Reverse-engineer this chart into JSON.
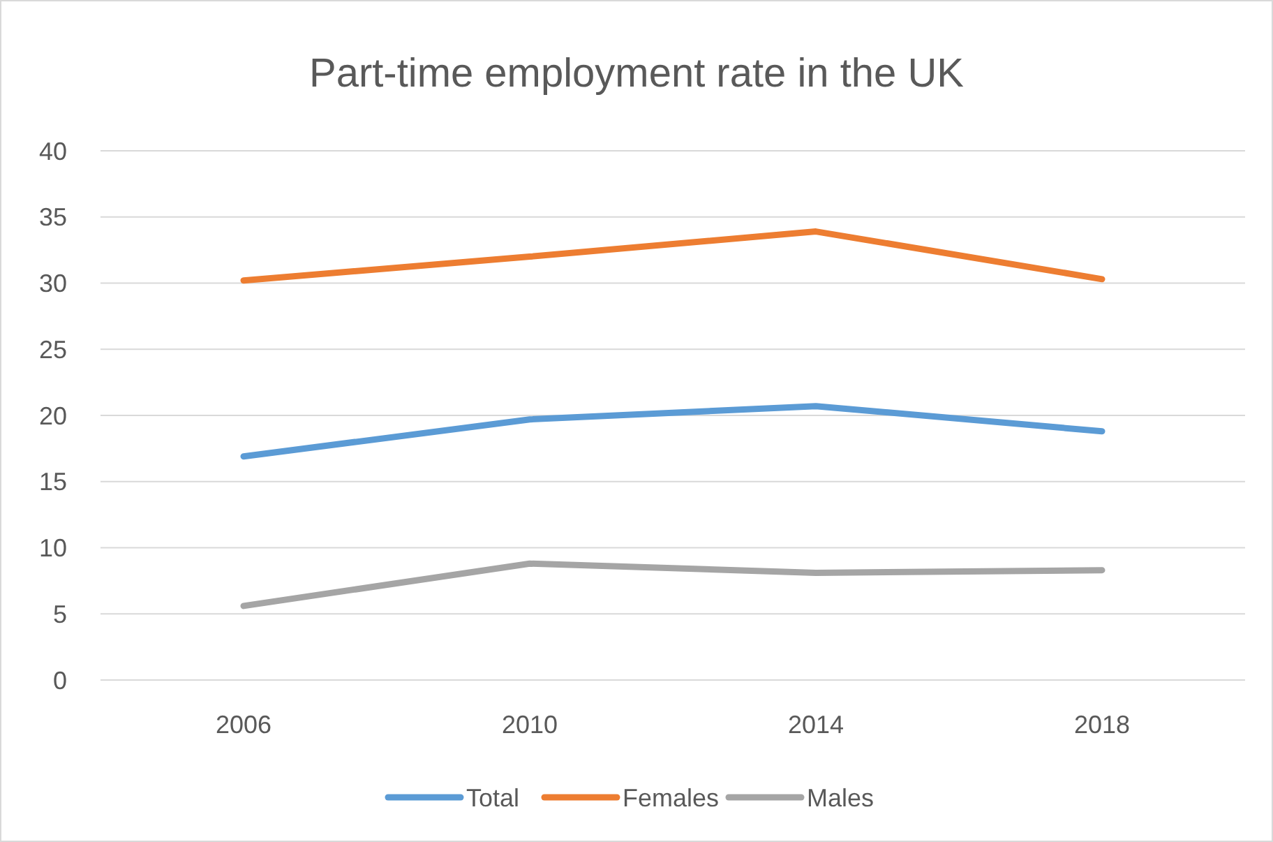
{
  "chart_data": {
    "type": "line",
    "title": "Part-time employment rate in the UK",
    "categories": [
      "2006",
      "2010",
      "2014",
      "2018"
    ],
    "series": [
      {
        "name": "Total",
        "color": "#5b9bd5",
        "values": [
          16.9,
          19.7,
          20.7,
          18.8
        ]
      },
      {
        "name": "Females",
        "color": "#ed7d31",
        "values": [
          30.2,
          32.0,
          33.9,
          30.3
        ]
      },
      {
        "name": "Males",
        "color": "#a5a5a5",
        "values": [
          5.6,
          8.8,
          8.1,
          8.3
        ]
      }
    ],
    "ylim": [
      0,
      40
    ],
    "yticks": [
      0,
      5,
      10,
      15,
      20,
      25,
      30,
      35,
      40
    ],
    "grid": "y",
    "legend": "bottom",
    "marker": "none",
    "line_style": "solid"
  }
}
